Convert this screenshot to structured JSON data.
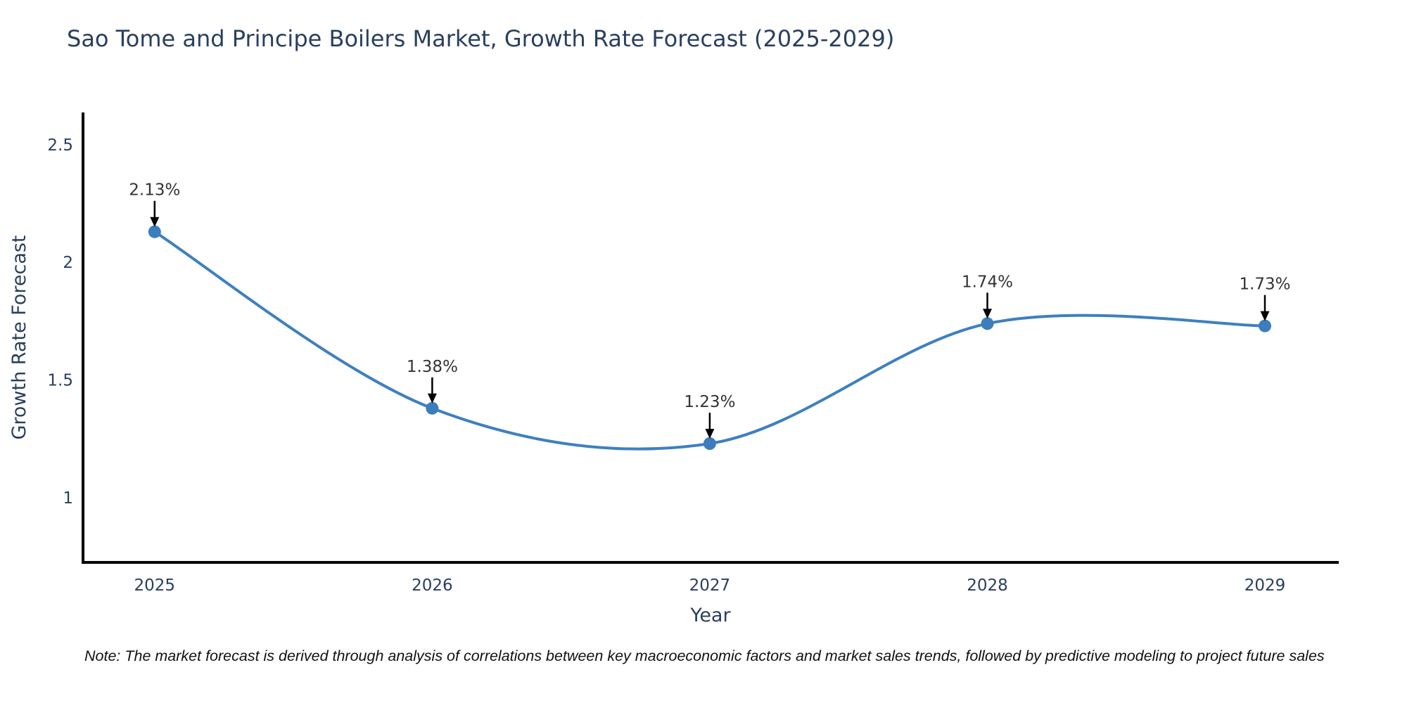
{
  "title": "Sao Tome and Principe Boilers Market, Growth Rate Forecast (2025-2029)",
  "note": "Note: The market forecast is derived through analysis of correlations between key macroeconomic factors and market sales trends, followed by predictive modeling to project future sales",
  "chart_data": {
    "type": "line",
    "line_shape": "spline",
    "title": "Sao Tome and Principe Boilers Market, Growth Rate Forecast (2025-2029)",
    "xlabel": "Year",
    "ylabel": "Growth Rate Forecast",
    "x": [
      2025,
      2026,
      2027,
      2028,
      2029
    ],
    "values": [
      2.13,
      1.38,
      1.23,
      1.74,
      1.73
    ],
    "point_labels": [
      "2.13%",
      "1.38%",
      "1.23%",
      "1.74%",
      "1.73%"
    ],
    "x_tick_labels": [
      "2025",
      "2026",
      "2027",
      "2028",
      "2029"
    ],
    "y_ticks": [
      1,
      1.5,
      2,
      2.5
    ],
    "y_tick_labels": [
      "1",
      "1.5",
      "2",
      "2.5"
    ],
    "xlim": [
      2024.742,
      2029.266
    ],
    "ylim": [
      0.725,
      2.637
    ],
    "grid": false,
    "legend": "none",
    "colors": {
      "line": "#3d80c0",
      "marker": "#3c7dbd",
      "axis": "#000000",
      "text": "#2a3f5f",
      "annotation_text": "#333333",
      "arrow": "#000000"
    }
  }
}
